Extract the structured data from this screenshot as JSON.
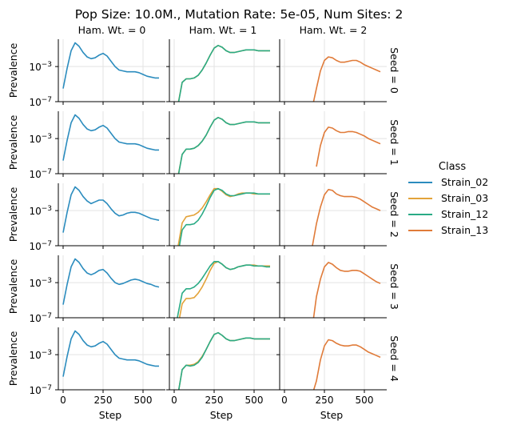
{
  "chart_data": {
    "type": "line",
    "title": "Pop Size: 10.0M., Mutation Rate: 5e-05, Num Sites: 2",
    "xlabel": "Step",
    "ylabel": "Prevalence",
    "yscale": "log",
    "ylim": [
      1e-07,
      1.3
    ],
    "xlim": [
      -30,
      640
    ],
    "xticks": [
      0,
      250,
      500
    ],
    "xtick_labels": [
      "0",
      "250",
      "500"
    ],
    "ytick_labels": [
      {
        "base": "10",
        "exp": "−3"
      },
      {
        "base": "10",
        "exp": "−7"
      }
    ],
    "ytick_values": [
      -3,
      -7
    ],
    "grid": true,
    "col_titles": [
      "Ham. Wt. = 0",
      "Ham. Wt. = 1",
      "Ham. Wt. = 2"
    ],
    "row_titles": [
      "Seed = 0",
      "Seed = 1",
      "Seed = 2",
      "Seed = 3",
      "Seed = 4"
    ],
    "legend": {
      "title": "Class",
      "placement": "right",
      "entries": [
        {
          "name": "Strain_02",
          "color": "#2b8cbe"
        },
        {
          "name": "Strain_03",
          "color": "#e3a33a"
        },
        {
          "name": "Strain_12",
          "color": "#2aab85"
        },
        {
          "name": "Strain_13",
          "color": "#e07b39"
        }
      ]
    },
    "x": [
      0,
      25,
      50,
      75,
      100,
      125,
      150,
      175,
      200,
      225,
      250,
      275,
      300,
      325,
      350,
      375,
      400,
      425,
      450,
      475,
      500,
      525,
      550,
      575,
      600
    ],
    "panels": [
      [
        {
          "series": [
            {
              "name": "Strain_02",
              "log10": [
                -5.5,
                -3.2,
                -1.2,
                -0.3,
                -0.7,
                -1.4,
                -1.9,
                -2.1,
                -2.0,
                -1.7,
                -1.5,
                -1.8,
                -2.4,
                -3.0,
                -3.4,
                -3.5,
                -3.6,
                -3.6,
                -3.6,
                -3.7,
                -3.9,
                -4.1,
                -4.2,
                -4.3,
                -4.3
              ]
            }
          ]
        },
        {
          "series": [
            {
              "name": "Strain_03",
              "log10": [
                -9,
                -7.2,
                -4.8,
                -4.4,
                -4.4,
                -4.3,
                -4.0,
                -3.4,
                -2.6,
                -1.7,
                -0.9,
                -0.6,
                -0.8,
                -1.2,
                -1.4,
                -1.4,
                -1.3,
                -1.2,
                -1.1,
                -1.1,
                -1.1,
                -1.2,
                -1.2,
                -1.2,
                -1.2
              ]
            },
            {
              "name": "Strain_12",
              "log10": [
                -9,
                -7.3,
                -4.8,
                -4.4,
                -4.4,
                -4.3,
                -4.0,
                -3.4,
                -2.6,
                -1.7,
                -0.9,
                -0.6,
                -0.8,
                -1.2,
                -1.4,
                -1.4,
                -1.3,
                -1.2,
                -1.1,
                -1.1,
                -1.1,
                -1.2,
                -1.2,
                -1.2,
                -1.2
              ]
            }
          ]
        },
        {
          "series": [
            {
              "name": "Strain_13",
              "log10": [
                null,
                null,
                null,
                null,
                null,
                null,
                null,
                -7.6,
                -5.5,
                -3.5,
                -2.3,
                -1.9,
                -2.0,
                -2.3,
                -2.5,
                -2.5,
                -2.4,
                -2.3,
                -2.3,
                -2.5,
                -2.8,
                -3.0,
                -3.2,
                -3.4,
                -3.6
              ]
            }
          ]
        }
      ],
      [
        {
          "series": [
            {
              "name": "Strain_02",
              "log10": [
                -5.5,
                -3.2,
                -1.2,
                -0.3,
                -0.7,
                -1.4,
                -1.9,
                -2.1,
                -2.0,
                -1.7,
                -1.5,
                -1.8,
                -2.4,
                -3.0,
                -3.4,
                -3.5,
                -3.6,
                -3.6,
                -3.6,
                -3.7,
                -3.9,
                -4.1,
                -4.2,
                -4.3,
                -4.3
              ]
            }
          ]
        },
        {
          "series": [
            {
              "name": "Strain_03",
              "log10": [
                -9,
                -7.2,
                -4.8,
                -4.2,
                -4.2,
                -4.1,
                -3.8,
                -3.3,
                -2.6,
                -1.7,
                -0.9,
                -0.6,
                -0.8,
                -1.2,
                -1.4,
                -1.4,
                -1.3,
                -1.2,
                -1.1,
                -1.1,
                -1.1,
                -1.2,
                -1.2,
                -1.2,
                -1.2
              ]
            },
            {
              "name": "Strain_12",
              "log10": [
                -9,
                -7.3,
                -4.8,
                -4.2,
                -4.2,
                -4.1,
                -3.8,
                -3.3,
                -2.6,
                -1.7,
                -0.9,
                -0.6,
                -0.8,
                -1.2,
                -1.4,
                -1.4,
                -1.3,
                -1.2,
                -1.1,
                -1.1,
                -1.1,
                -1.2,
                -1.2,
                -1.2,
                -1.2
              ]
            }
          ]
        },
        {
          "series": [
            {
              "name": "Strain_13",
              "log10": [
                null,
                null,
                null,
                null,
                null,
                null,
                null,
                null,
                -6.2,
                -3.8,
                -2.3,
                -1.7,
                -1.8,
                -2.1,
                -2.3,
                -2.3,
                -2.2,
                -2.2,
                -2.3,
                -2.5,
                -2.7,
                -3.0,
                -3.2,
                -3.4,
                -3.6
              ]
            }
          ]
        }
      ],
      [
        {
          "series": [
            {
              "name": "Strain_02",
              "log10": [
                -5.5,
                -3.2,
                -1.2,
                -0.3,
                -0.7,
                -1.4,
                -1.9,
                -2.2,
                -2.0,
                -1.8,
                -1.8,
                -2.2,
                -2.8,
                -3.3,
                -3.6,
                -3.5,
                -3.3,
                -3.2,
                -3.2,
                -3.3,
                -3.5,
                -3.7,
                -3.9,
                -4.0,
                -4.1
              ]
            }
          ]
        },
        {
          "series": [
            {
              "name": "Strain_03",
              "log10": [
                -9,
                -7.0,
                -4.4,
                -3.7,
                -3.6,
                -3.5,
                -3.2,
                -2.7,
                -2.0,
                -1.2,
                -0.5,
                -0.5,
                -0.8,
                -1.2,
                -1.4,
                -1.3,
                -1.1,
                -1.0,
                -1.0,
                -1.0,
                -1.1,
                -1.1,
                -1.1,
                -1.1,
                -1.1
              ]
            },
            {
              "name": "Strain_12",
              "log10": [
                -9,
                -7.8,
                -5.2,
                -4.6,
                -4.6,
                -4.5,
                -4.1,
                -3.4,
                -2.5,
                -1.5,
                -0.7,
                -0.5,
                -0.7,
                -1.1,
                -1.3,
                -1.3,
                -1.2,
                -1.1,
                -1.0,
                -1.0,
                -1.0,
                -1.1,
                -1.1,
                -1.1,
                -1.1
              ]
            }
          ]
        },
        {
          "series": [
            {
              "name": "Strain_13",
              "log10": [
                null,
                null,
                null,
                null,
                null,
                null,
                null,
                -7.0,
                -4.5,
                -2.6,
                -1.2,
                -0.6,
                -0.7,
                -1.1,
                -1.3,
                -1.4,
                -1.4,
                -1.4,
                -1.5,
                -1.7,
                -2.0,
                -2.3,
                -2.6,
                -2.8,
                -3.0
              ]
            }
          ]
        }
      ],
      [
        {
          "series": [
            {
              "name": "Strain_02",
              "log10": [
                -5.5,
                -3.2,
                -1.2,
                -0.3,
                -0.7,
                -1.4,
                -1.9,
                -2.1,
                -1.9,
                -1.6,
                -1.5,
                -1.9,
                -2.5,
                -3.0,
                -3.2,
                -3.1,
                -2.9,
                -2.7,
                -2.6,
                -2.7,
                -2.9,
                -3.1,
                -3.2,
                -3.4,
                -3.5
              ]
            }
          ]
        },
        {
          "series": [
            {
              "name": "Strain_03",
              "log10": [
                -9,
                -7.8,
                -5.4,
                -4.8,
                -4.8,
                -4.7,
                -4.2,
                -3.5,
                -2.6,
                -1.6,
                -0.8,
                -0.6,
                -0.9,
                -1.3,
                -1.5,
                -1.4,
                -1.2,
                -1.1,
                -1.0,
                -1.0,
                -1.0,
                -1.1,
                -1.1,
                -1.1,
                -1.1
              ]
            },
            {
              "name": "Strain_12",
              "log10": [
                -9,
                -6.5,
                -4.2,
                -3.7,
                -3.7,
                -3.5,
                -3.1,
                -2.5,
                -1.8,
                -1.1,
                -0.6,
                -0.6,
                -0.9,
                -1.3,
                -1.5,
                -1.4,
                -1.2,
                -1.1,
                -1.0,
                -1.0,
                -1.1,
                -1.1,
                -1.1,
                -1.2,
                -1.2
              ]
            }
          ]
        },
        {
          "series": [
            {
              "name": "Strain_13",
              "log10": [
                null,
                null,
                null,
                null,
                null,
                null,
                null,
                -8.0,
                -4.6,
                -2.6,
                -1.2,
                -0.7,
                -0.9,
                -1.3,
                -1.6,
                -1.7,
                -1.7,
                -1.6,
                -1.6,
                -1.7,
                -2.0,
                -2.3,
                -2.6,
                -2.9,
                -3.1
              ]
            }
          ]
        }
      ],
      [
        {
          "series": [
            {
              "name": "Strain_02",
              "log10": [
                -5.5,
                -3.2,
                -1.2,
                -0.3,
                -0.7,
                -1.4,
                -1.9,
                -2.1,
                -2.0,
                -1.7,
                -1.5,
                -1.8,
                -2.4,
                -3.0,
                -3.4,
                -3.5,
                -3.6,
                -3.6,
                -3.6,
                -3.7,
                -3.9,
                -4.1,
                -4.2,
                -4.3,
                -4.3
              ]
            }
          ]
        },
        {
          "series": [
            {
              "name": "Strain_03",
              "log10": [
                -9,
                -7.4,
                -4.7,
                -4.2,
                -4.2,
                -4.1,
                -3.8,
                -3.2,
                -2.4,
                -1.5,
                -0.7,
                -0.5,
                -0.8,
                -1.2,
                -1.4,
                -1.4,
                -1.3,
                -1.2,
                -1.1,
                -1.1,
                -1.2,
                -1.2,
                -1.2,
                -1.2,
                -1.2
              ]
            },
            {
              "name": "Strain_12",
              "log10": [
                -9,
                -7.4,
                -4.7,
                -4.2,
                -4.3,
                -4.2,
                -3.9,
                -3.3,
                -2.4,
                -1.5,
                -0.7,
                -0.5,
                -0.8,
                -1.2,
                -1.4,
                -1.4,
                -1.3,
                -1.2,
                -1.1,
                -1.1,
                -1.2,
                -1.2,
                -1.2,
                -1.2,
                -1.2
              ]
            }
          ]
        },
        {
          "series": [
            {
              "name": "Strain_13",
              "log10": [
                null,
                null,
                null,
                null,
                null,
                null,
                null,
                -7.5,
                -6.0,
                -3.6,
                -2.0,
                -1.3,
                -1.4,
                -1.7,
                -1.9,
                -2.0,
                -2.0,
                -1.9,
                -1.9,
                -2.1,
                -2.4,
                -2.7,
                -2.9,
                -3.1,
                -3.3
              ]
            }
          ]
        }
      ]
    ]
  }
}
